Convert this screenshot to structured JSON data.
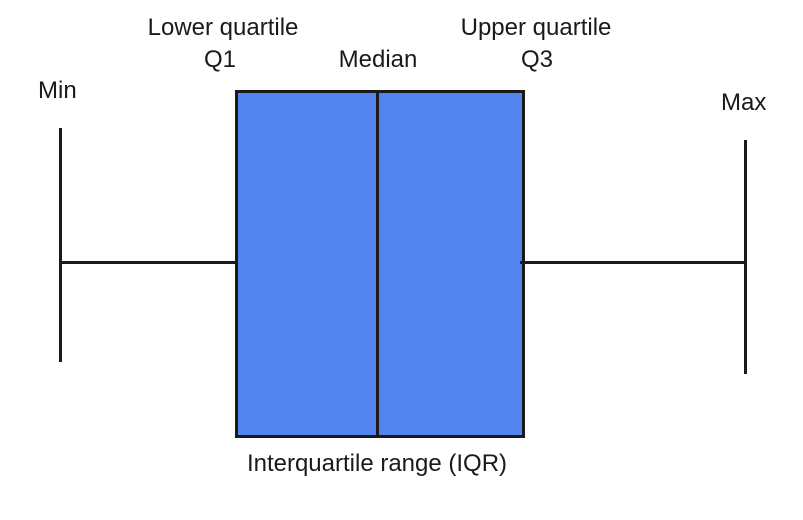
{
  "labels": {
    "min": "Min",
    "max": "Max",
    "lower_quartile": "Lower quartile",
    "q1": "Q1",
    "median": "Median",
    "upper_quartile": "Upper quartile",
    "q3": "Q3",
    "iqr": "Interquartile range (IQR)"
  },
  "colors": {
    "box_fill": "#5383ec",
    "stroke": "#1a1a1a",
    "background": "#ffffff"
  }
}
